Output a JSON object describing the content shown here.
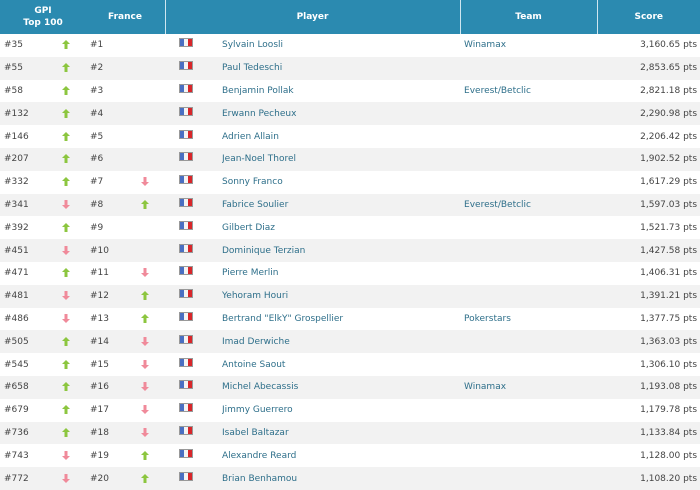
{
  "header": {
    "gpi_line1": "GPI",
    "gpi_line2": "Top 100",
    "france": "France",
    "player": "Player",
    "team": "Team",
    "score": "Score"
  },
  "colors": {
    "header_bg": "#2b8ab0",
    "up": "#8cc63f",
    "down": "#f08a9a",
    "link": "#2e6f8a"
  },
  "rows": [
    {
      "gpi": "#35",
      "gpi_trend": "up",
      "france": "#1",
      "france_trend": "",
      "country": "France",
      "player": "Sylvain Loosli",
      "team": "Winamax",
      "score": "3,160.65 pts"
    },
    {
      "gpi": "#55",
      "gpi_trend": "up",
      "france": "#2",
      "france_trend": "",
      "country": "France",
      "player": "Paul Tedeschi",
      "team": "",
      "score": "2,853.65 pts"
    },
    {
      "gpi": "#58",
      "gpi_trend": "up",
      "france": "#3",
      "france_trend": "",
      "country": "France",
      "player": "Benjamin Pollak",
      "team": "Everest/Betclic",
      "score": "2,821.18 pts"
    },
    {
      "gpi": "#132",
      "gpi_trend": "up",
      "france": "#4",
      "france_trend": "",
      "country": "France",
      "player": "Erwann Pecheux",
      "team": "",
      "score": "2,290.98 pts"
    },
    {
      "gpi": "#146",
      "gpi_trend": "up",
      "france": "#5",
      "france_trend": "",
      "country": "France",
      "player": "Adrien Allain",
      "team": "",
      "score": "2,206.42 pts"
    },
    {
      "gpi": "#207",
      "gpi_trend": "up",
      "france": "#6",
      "france_trend": "",
      "country": "France",
      "player": "Jean-Noel Thorel",
      "team": "",
      "score": "1,902.52 pts"
    },
    {
      "gpi": "#332",
      "gpi_trend": "up",
      "france": "#7",
      "france_trend": "down",
      "country": "France",
      "player": "Sonny Franco",
      "team": "",
      "score": "1,617.29 pts"
    },
    {
      "gpi": "#341",
      "gpi_trend": "down",
      "france": "#8",
      "france_trend": "up",
      "country": "France",
      "player": "Fabrice Soulier",
      "team": "Everest/Betclic",
      "score": "1,597.03 pts"
    },
    {
      "gpi": "#392",
      "gpi_trend": "up",
      "france": "#9",
      "france_trend": "",
      "country": "France",
      "player": "Gilbert Diaz",
      "team": "",
      "score": "1,521.73 pts"
    },
    {
      "gpi": "#451",
      "gpi_trend": "down",
      "france": "#10",
      "france_trend": "",
      "country": "France",
      "player": "Dominique Terzian",
      "team": "",
      "score": "1,427.58 pts"
    },
    {
      "gpi": "#471",
      "gpi_trend": "up",
      "france": "#11",
      "france_trend": "down",
      "country": "France",
      "player": "Pierre Merlin",
      "team": "",
      "score": "1,406.31 pts"
    },
    {
      "gpi": "#481",
      "gpi_trend": "down",
      "france": "#12",
      "france_trend": "up",
      "country": "France",
      "player": "Yehoram Houri",
      "team": "",
      "score": "1,391.21 pts"
    },
    {
      "gpi": "#486",
      "gpi_trend": "down",
      "france": "#13",
      "france_trend": "up",
      "country": "France",
      "player": "Bertrand \"ElkY\" Grospellier",
      "team": "Pokerstars",
      "score": "1,377.75 pts"
    },
    {
      "gpi": "#505",
      "gpi_trend": "up",
      "france": "#14",
      "france_trend": "down",
      "country": "France",
      "player": "Imad Derwiche",
      "team": "",
      "score": "1,363.03 pts"
    },
    {
      "gpi": "#545",
      "gpi_trend": "up",
      "france": "#15",
      "france_trend": "down",
      "country": "France",
      "player": "Antoine Saout",
      "team": "",
      "score": "1,306.10 pts"
    },
    {
      "gpi": "#658",
      "gpi_trend": "up",
      "france": "#16",
      "france_trend": "down",
      "country": "France",
      "player": "Michel Abecassis",
      "team": "Winamax",
      "score": "1,193.08 pts"
    },
    {
      "gpi": "#679",
      "gpi_trend": "up",
      "france": "#17",
      "france_trend": "down",
      "country": "France",
      "player": "Jimmy Guerrero",
      "team": "",
      "score": "1,179.78 pts"
    },
    {
      "gpi": "#736",
      "gpi_trend": "up",
      "france": "#18",
      "france_trend": "down",
      "country": "France",
      "player": "Isabel Baltazar",
      "team": "",
      "score": "1,133.84 pts"
    },
    {
      "gpi": "#743",
      "gpi_trend": "down",
      "france": "#19",
      "france_trend": "up",
      "country": "France",
      "player": "Alexandre Reard",
      "team": "",
      "score": "1,128.00 pts"
    },
    {
      "gpi": "#772",
      "gpi_trend": "down",
      "france": "#20",
      "france_trend": "up",
      "country": "France",
      "player": "Brian Benhamou",
      "team": "",
      "score": "1,108.20 pts"
    }
  ]
}
